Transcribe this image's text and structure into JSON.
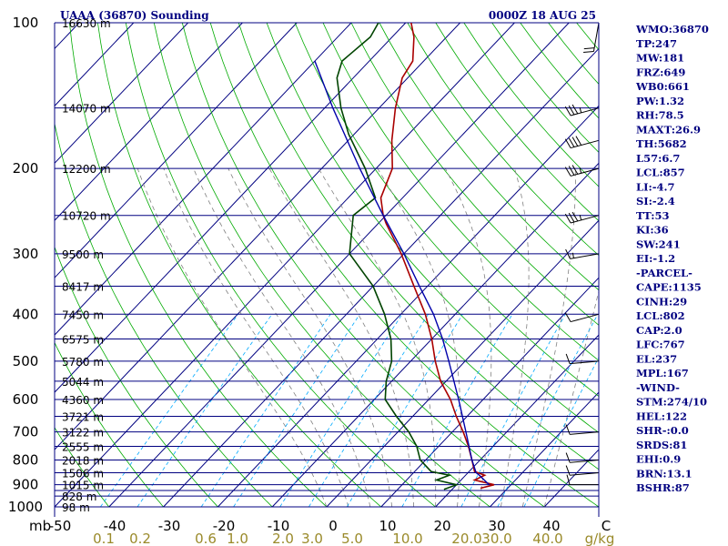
{
  "header": {
    "station": "UAAA (36870) Sounding",
    "time": "0000Z 18 AUG 25"
  },
  "indices": [
    "WMO:36870",
    "TP:247",
    "MW:181",
    "FRZ:649",
    "WB0:661",
    "PW:1.32",
    "RH:78.5",
    "MAXT:26.9",
    "TH:5682",
    "L57:6.7",
    "LCL:857",
    "LI:-4.7",
    "SI:-2.4",
    "TT:53",
    "KI:36",
    "SW:241",
    "EI:-1.2",
    "-PARCEL-",
    "CAPE:1135",
    "CINH:29",
    "LCL:802",
    "CAP:2.0",
    "LFC:767",
    "EL:237",
    "MPL:167",
    "-WIND-",
    "STM:274/10",
    "HEL:122",
    "SHR-:0.0",
    "SRDS:81",
    "EHI:0.9",
    "BRN:13.1",
    "BSHR:87"
  ],
  "colors": {
    "isobar": "#000080",
    "isotherm": "#000080",
    "dry_adiabat": "#00aa00",
    "moist_adiabat": "#808080",
    "mixing_ratio": "#00aaff",
    "temperature": "#aa0000",
    "dewpoint": "#004400",
    "parcel": "#0000aa",
    "text": "#000080"
  },
  "chart_data": {
    "type": "line",
    "title": "UAAA (36870) Sounding",
    "x_unit": "C",
    "y_unit": "mb",
    "x_range": [
      -50,
      50
    ],
    "y_range": [
      1000,
      100
    ],
    "y_scale": "log",
    "mixing_ratio_unit": "g/kg",
    "pressure_labels": [
      {
        "p": 100,
        "label": "100"
      },
      {
        "p": 200,
        "label": "200"
      },
      {
        "p": 300,
        "label": "300"
      },
      {
        "p": 400,
        "label": "400"
      },
      {
        "p": 500,
        "label": "500"
      },
      {
        "p": 600,
        "label": "600"
      },
      {
        "p": 700,
        "label": "700"
      },
      {
        "p": 800,
        "label": "800"
      },
      {
        "p": 900,
        "label": "900"
      },
      {
        "p": 1000,
        "label": "1000"
      }
    ],
    "pressure_unit_label": "mb",
    "isobar_levels": [
      100,
      150,
      200,
      250,
      300,
      350,
      400,
      450,
      500,
      550,
      600,
      650,
      700,
      750,
      800,
      850,
      900,
      925,
      950,
      1000
    ],
    "height_labels": [
      {
        "p": 100,
        "label": "16630 m"
      },
      {
        "p": 150,
        "label": "14070 m"
      },
      {
        "p": 200,
        "label": "12200 m"
      },
      {
        "p": 250,
        "label": "10720 m"
      },
      {
        "p": 300,
        "label": "9500 m"
      },
      {
        "p": 350,
        "label": "8417 m"
      },
      {
        "p": 400,
        "label": "7450 m"
      },
      {
        "p": 450,
        "label": "6575 m"
      },
      {
        "p": 500,
        "label": "5780 m"
      },
      {
        "p": 550,
        "label": "5044 m"
      },
      {
        "p": 600,
        "label": "4360 m"
      },
      {
        "p": 650,
        "label": "3721 m"
      },
      {
        "p": 700,
        "label": "3122 m"
      },
      {
        "p": 750,
        "label": "2555 m"
      },
      {
        "p": 800,
        "label": "2018 m"
      },
      {
        "p": 850,
        "label": "1506 m"
      },
      {
        "p": 900,
        "label": "1015 m"
      },
      {
        "p": 950,
        "label": "828 m"
      },
      {
        "p": 1000,
        "label": "98 m"
      }
    ],
    "temperature_ticks": [
      "-50",
      "-40",
      "-30",
      "-20",
      "-10",
      "0",
      "10",
      "20",
      "30",
      "40",
      "C"
    ],
    "mixing_ratio_labels": [
      "0.1",
      "0.2",
      "0.6",
      "1.0",
      "2.0",
      "3.0",
      "5.0",
      "10.0",
      "20.0",
      "30.0",
      "40.0",
      "g/kg"
    ],
    "mixing_ratio_values": [
      0.1,
      0.2,
      0.6,
      1.0,
      2.0,
      3.0,
      5.0,
      10.0,
      20.0,
      30.0,
      40.0
    ],
    "series": [
      {
        "name": "Temperature",
        "points": [
          {
            "p": 915,
            "t": 25.0
          },
          {
            "p": 900,
            "t": 26.9
          },
          {
            "p": 880,
            "t": 22.5
          },
          {
            "p": 860,
            "t": 23.5
          },
          {
            "p": 845,
            "t": 21.0
          },
          {
            "p": 800,
            "t": 18.5
          },
          {
            "p": 750,
            "t": 15.5
          },
          {
            "p": 700,
            "t": 12.0
          },
          {
            "p": 650,
            "t": 8.0
          },
          {
            "p": 600,
            "t": 4.0
          },
          {
            "p": 550,
            "t": -1.0
          },
          {
            "p": 500,
            "t": -5.5
          },
          {
            "p": 450,
            "t": -10.0
          },
          {
            "p": 400,
            "t": -15.5
          },
          {
            "p": 350,
            "t": -22.5
          },
          {
            "p": 300,
            "t": -30.5
          },
          {
            "p": 260,
            "t": -38.5
          },
          {
            "p": 250,
            "t": -40.5
          },
          {
            "p": 230,
            "t": -44.0
          },
          {
            "p": 200,
            "t": -47.0
          },
          {
            "p": 175,
            "t": -52.0
          },
          {
            "p": 150,
            "t": -57.0
          },
          {
            "p": 130,
            "t": -61.0
          },
          {
            "p": 120,
            "t": -62.0
          },
          {
            "p": 107,
            "t": -66.0
          },
          {
            "p": 100,
            "t": -69.0
          }
        ]
      },
      {
        "name": "Dewpoint",
        "points": [
          {
            "p": 920,
            "t": 18.5
          },
          {
            "p": 900,
            "t": 20.0
          },
          {
            "p": 880,
            "t": 15.5
          },
          {
            "p": 860,
            "t": 17.0
          },
          {
            "p": 845,
            "t": 13.0
          },
          {
            "p": 800,
            "t": 9.0
          },
          {
            "p": 750,
            "t": 6.0
          },
          {
            "p": 700,
            "t": 2.0
          },
          {
            "p": 650,
            "t": -3.0
          },
          {
            "p": 600,
            "t": -8.0
          },
          {
            "p": 550,
            "t": -11.0
          },
          {
            "p": 500,
            "t": -13.5
          },
          {
            "p": 450,
            "t": -17.5
          },
          {
            "p": 400,
            "t": -23.0
          },
          {
            "p": 350,
            "t": -30.0
          },
          {
            "p": 300,
            "t": -40.0
          },
          {
            "p": 250,
            "t": -46.0
          },
          {
            "p": 230,
            "t": -45.0
          },
          {
            "p": 200,
            "t": -52.0
          },
          {
            "p": 170,
            "t": -61.0
          },
          {
            "p": 150,
            "t": -67.0
          },
          {
            "p": 130,
            "t": -73.0
          },
          {
            "p": 120,
            "t": -75.0
          },
          {
            "p": 107,
            "t": -74.0
          },
          {
            "p": 100,
            "t": -75.0
          }
        ]
      },
      {
        "name": "Parcel",
        "points": [
          {
            "p": 900,
            "t": 26.0
          },
          {
            "p": 860,
            "t": 22.5
          },
          {
            "p": 850,
            "t": 21.5
          },
          {
            "p": 800,
            "t": 18.5
          },
          {
            "p": 700,
            "t": 12.5
          },
          {
            "p": 600,
            "t": 5.5
          },
          {
            "p": 500,
            "t": -3.0
          },
          {
            "p": 450,
            "t": -8.0
          },
          {
            "p": 400,
            "t": -14.0
          },
          {
            "p": 350,
            "t": -21.5
          },
          {
            "p": 300,
            "t": -30.0
          },
          {
            "p": 250,
            "t": -40.5
          },
          {
            "p": 200,
            "t": -53.0
          },
          {
            "p": 150,
            "t": -68.5
          },
          {
            "p": 120,
            "t": -80.0
          }
        ]
      }
    ],
    "wind_barbs": [
      {
        "p": 900,
        "dir": 270,
        "speed": 10
      },
      {
        "p": 850,
        "dir": 265,
        "speed": 10
      },
      {
        "p": 800,
        "dir": 265,
        "speed": 10
      },
      {
        "p": 700,
        "dir": 265,
        "speed": 10
      },
      {
        "p": 500,
        "dir": 265,
        "speed": 10
      },
      {
        "p": 400,
        "dir": 255,
        "speed": 10
      },
      {
        "p": 300,
        "dir": 260,
        "speed": 15
      },
      {
        "p": 250,
        "dir": 255,
        "speed": 35
      },
      {
        "p": 200,
        "dir": 255,
        "speed": 35
      },
      {
        "p": 175,
        "dir": 255,
        "speed": 40
      },
      {
        "p": 150,
        "dir": 255,
        "speed": 35
      },
      {
        "p": 100,
        "dir": 190,
        "speed": 20
      }
    ]
  }
}
